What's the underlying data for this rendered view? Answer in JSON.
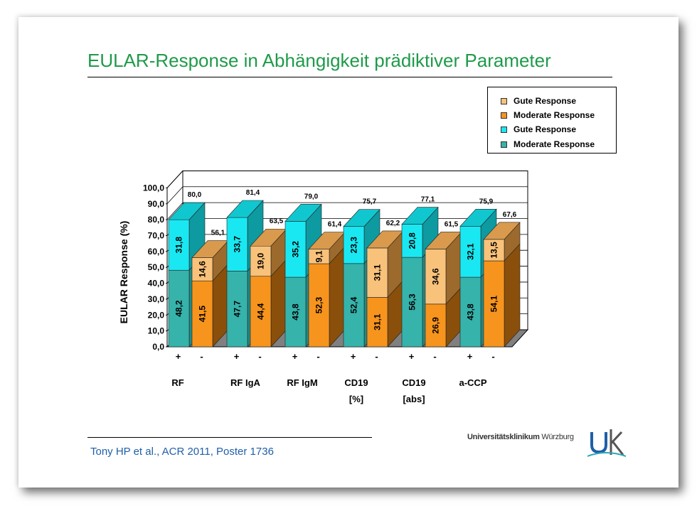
{
  "slide": {
    "title": "EULAR-Response in Abhängigkeit prädiktiver Parameter",
    "citation": "Tony HP et al., ACR 2011, Poster 1736",
    "logo": {
      "text_bold": "Universitätsklinikum",
      "text_normal": "Würzburg",
      "mark": "UK"
    }
  },
  "legend": {
    "items": [
      {
        "label": "Gute Response",
        "color": "#f9c27a"
      },
      {
        "label": "Moderate Response",
        "color": "#f7941d"
      },
      {
        "label": "Gute Response",
        "color": "#19e8f2"
      },
      {
        "label": "Moderate Response",
        "color": "#36b3ab"
      }
    ]
  },
  "chart_data": {
    "type": "bar",
    "stacked": true,
    "three_d": true,
    "ylabel": "EULAR Response (%)",
    "ylim": [
      0,
      100
    ],
    "yticks": [
      "0,0",
      "10,0",
      "20,0",
      "30,0",
      "40,0",
      "50,0",
      "60,0",
      "70,0",
      "80,0",
      "90,0",
      "100,0"
    ],
    "grid": true,
    "legend_position": "top-right",
    "groups": [
      {
        "label": "RF",
        "sublabel": ""
      },
      {
        "label": "RF IgA",
        "sublabel": ""
      },
      {
        "label": "RF IgM",
        "sublabel": ""
      },
      {
        "label": "CD19",
        "sublabel": "[%]"
      },
      {
        "label": "CD19",
        "sublabel": "[abs]"
      },
      {
        "label": "a-CCP",
        "sublabel": ""
      }
    ],
    "bars": [
      {
        "group": 0,
        "sign": "+",
        "moderate": 48.2,
        "good": 31.8,
        "moderate_label": "48,2",
        "good_label": "31,8",
        "total_label": "80,0",
        "palette": "teal"
      },
      {
        "group": 0,
        "sign": "-",
        "moderate": 41.5,
        "good": 14.6,
        "moderate_label": "41,5",
        "good_label": "14,6",
        "total_label": "56,1",
        "palette": "orange"
      },
      {
        "group": 1,
        "sign": "+",
        "moderate": 47.7,
        "good": 33.7,
        "moderate_label": "47,7",
        "good_label": "33,7",
        "total_label": "81,4",
        "palette": "teal"
      },
      {
        "group": 1,
        "sign": "-",
        "moderate": 44.4,
        "good": 19.0,
        "moderate_label": "44,4",
        "good_label": "19,0",
        "total_label": "63,5",
        "palette": "orange"
      },
      {
        "group": 2,
        "sign": "+",
        "moderate": 43.8,
        "good": 35.2,
        "moderate_label": "43,8",
        "good_label": "35,2",
        "total_label": "79,0",
        "palette": "teal"
      },
      {
        "group": 2,
        "sign": "-",
        "moderate": 52.3,
        "good": 9.1,
        "moderate_label": "52,3",
        "good_label": "9,1",
        "total_label": "61,4",
        "palette": "orange"
      },
      {
        "group": 3,
        "sign": "+",
        "moderate": 52.4,
        "good": 23.3,
        "moderate_label": "52,4",
        "good_label": "23,3",
        "total_label": "75,7",
        "palette": "teal"
      },
      {
        "group": 3,
        "sign": "-",
        "moderate": 31.1,
        "good": 31.1,
        "moderate_label": "31,1",
        "good_label": "31,1",
        "total_label": "62,2",
        "palette": "orange"
      },
      {
        "group": 4,
        "sign": "+",
        "moderate": 56.3,
        "good": 20.8,
        "moderate_label": "56,3",
        "good_label": "20,8",
        "total_label": "77,1",
        "palette": "teal"
      },
      {
        "group": 4,
        "sign": "-",
        "moderate": 26.9,
        "good": 34.6,
        "moderate_label": "26,9",
        "good_label": "34,6",
        "total_label": "61,5",
        "palette": "orange"
      },
      {
        "group": 5,
        "sign": "+",
        "moderate": 43.8,
        "good": 32.1,
        "moderate_label": "43,8",
        "good_label": "32,1",
        "total_label": "75,9",
        "palette": "teal"
      },
      {
        "group": 5,
        "sign": "-",
        "moderate": 54.1,
        "good": 13.5,
        "moderate_label": "54,1",
        "good_label": "13,5",
        "total_label": "67,6",
        "palette": "orange"
      }
    ]
  }
}
